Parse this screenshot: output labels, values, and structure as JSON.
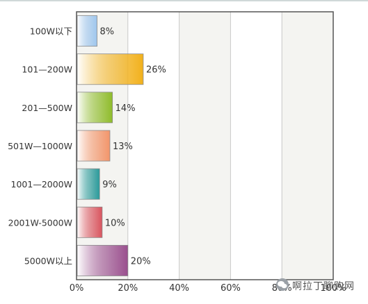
{
  "chart_data": {
    "type": "bar",
    "orientation": "horizontal",
    "title": "",
    "xlabel": "",
    "ylabel": "",
    "categories": [
      "100W以下",
      "101—200W",
      "201—500W",
      "501W—1000W",
      "1001—2000W",
      "2001W-5000W",
      "5000W以上"
    ],
    "values": [
      8,
      26,
      14,
      13,
      9,
      10,
      20
    ],
    "value_labels": [
      "8%",
      "26%",
      "14%",
      "13%",
      "9%",
      "10%",
      "20%"
    ],
    "xlim": [
      0,
      100
    ],
    "x_ticks": [
      0,
      20,
      40,
      60,
      80,
      100
    ],
    "x_tick_labels": [
      "0%",
      "20%",
      "40%",
      "60%",
      "80%",
      "100%"
    ],
    "grid": true,
    "legend": "none",
    "bar_colors": [
      "#9ec6ee",
      "#f2b11c",
      "#8fbc2a",
      "#f3956a",
      "#2a9a9a",
      "#d9545e",
      "#9a4f8e"
    ]
  },
  "watermark": {
    "text": "啊拉丁聊购网",
    "icon": "wechat-icon"
  }
}
